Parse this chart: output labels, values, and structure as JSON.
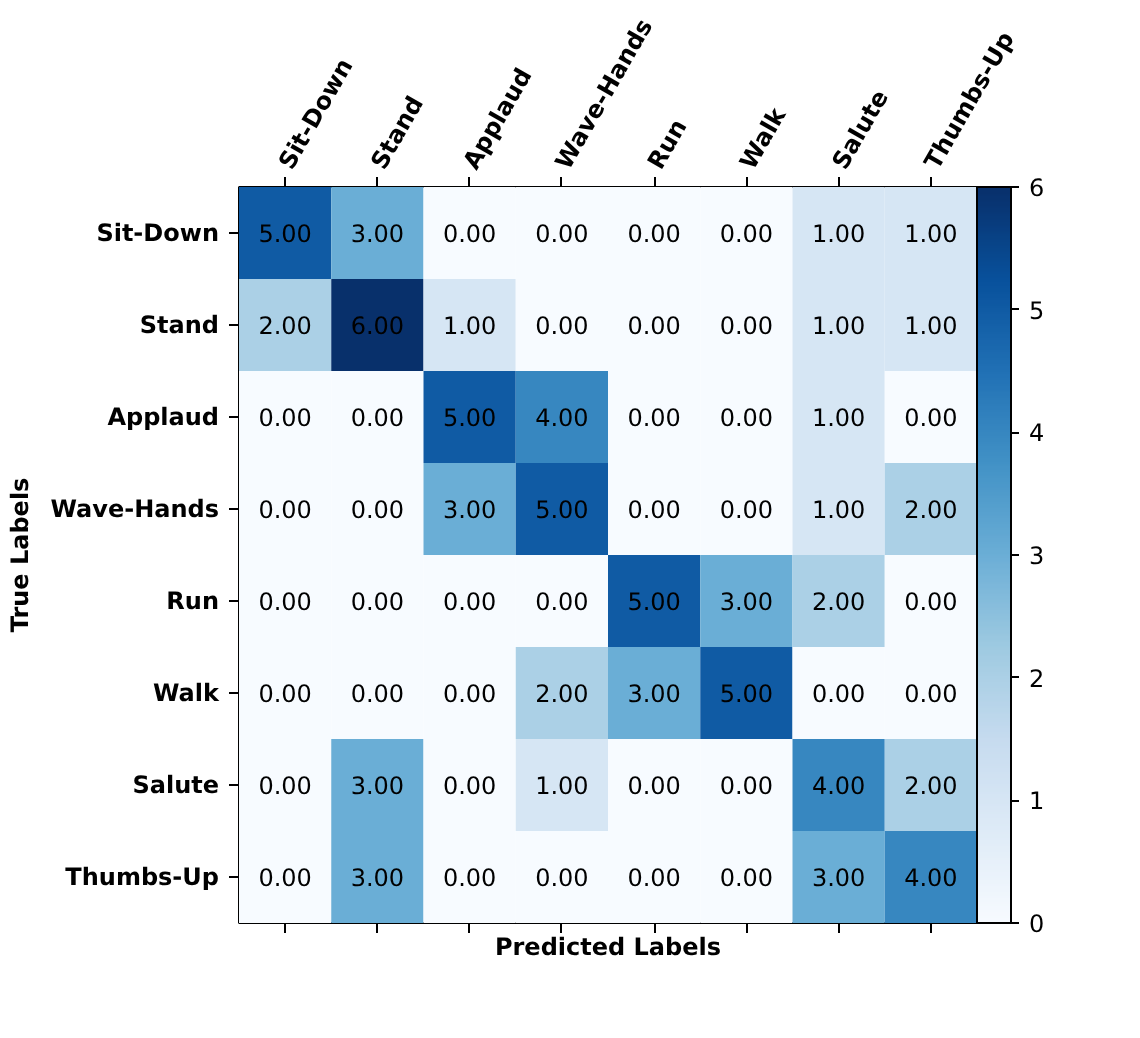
{
  "chart_data": {
    "type": "heatmap",
    "categories": [
      "Sit-Down",
      "Stand",
      "Applaud",
      "Wave-Hands",
      "Run",
      "Walk",
      "Salute",
      "Thumbs-Up"
    ],
    "y_categories": [
      "Sit-Down",
      "Stand",
      "Applaud",
      "Wave-Hands",
      "Run",
      "Walk",
      "Salute",
      "Thumbs-Up"
    ],
    "cells": [
      [
        5,
        3,
        0,
        0,
        0,
        0,
        1,
        1
      ],
      [
        2,
        6,
        1,
        0,
        0,
        0,
        1,
        1
      ],
      [
        0,
        0,
        5,
        4,
        0,
        0,
        1,
        0
      ],
      [
        0,
        0,
        3,
        5,
        0,
        0,
        1,
        2
      ],
      [
        0,
        0,
        0,
        0,
        5,
        3,
        2,
        0
      ],
      [
        0,
        0,
        0,
        2,
        3,
        5,
        0,
        0
      ],
      [
        0,
        3,
        0,
        1,
        0,
        0,
        4,
        2
      ],
      [
        0,
        3,
        0,
        0,
        0,
        0,
        3,
        4
      ]
    ],
    "cell_labels": [
      [
        "5.00",
        "3.00",
        "0.00",
        "0.00",
        "0.00",
        "0.00",
        "1.00",
        "1.00"
      ],
      [
        "2.00",
        "6.00",
        "1.00",
        "0.00",
        "0.00",
        "0.00",
        "1.00",
        "1.00"
      ],
      [
        "0.00",
        "0.00",
        "5.00",
        "4.00",
        "0.00",
        "0.00",
        "1.00",
        "0.00"
      ],
      [
        "0.00",
        "0.00",
        "3.00",
        "5.00",
        "0.00",
        "0.00",
        "1.00",
        "2.00"
      ],
      [
        "0.00",
        "0.00",
        "0.00",
        "0.00",
        "5.00",
        "3.00",
        "2.00",
        "0.00"
      ],
      [
        "0.00",
        "0.00",
        "0.00",
        "2.00",
        "3.00",
        "5.00",
        "0.00",
        "0.00"
      ],
      [
        "0.00",
        "3.00",
        "0.00",
        "1.00",
        "0.00",
        "0.00",
        "4.00",
        "2.00"
      ],
      [
        "0.00",
        "3.00",
        "0.00",
        "0.00",
        "0.00",
        "0.00",
        "3.00",
        "4.00"
      ]
    ],
    "xlabel": "Predicted Labels",
    "ylabel": "True Labels",
    "clim": [
      0,
      6
    ],
    "cticks": [
      0,
      1,
      2,
      3,
      4,
      5,
      6
    ]
  }
}
